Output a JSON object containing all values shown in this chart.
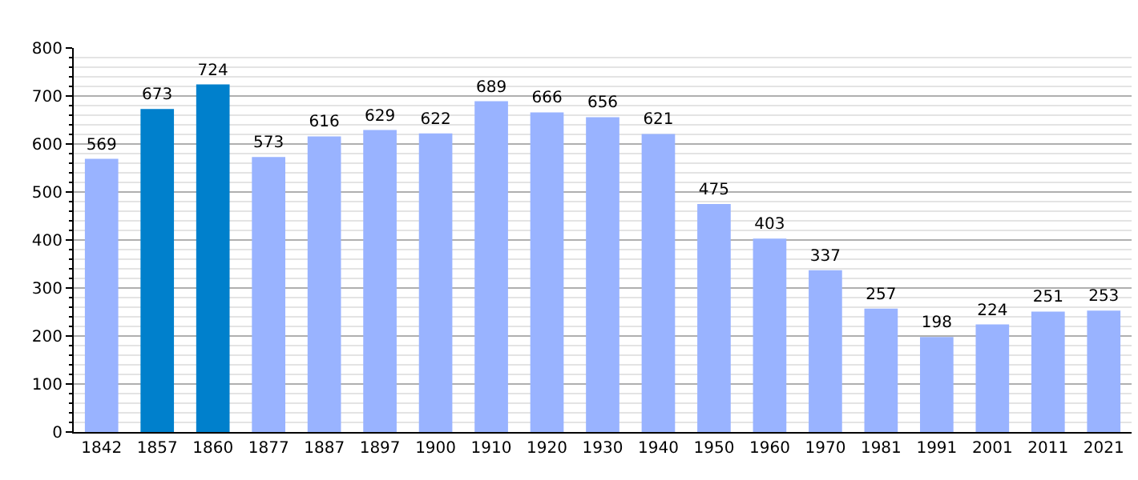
{
  "chart_data": {
    "type": "bar",
    "categories": [
      "1842",
      "1857",
      "1860",
      "1877",
      "1887",
      "1897",
      "1900",
      "1910",
      "1920",
      "1930",
      "1940",
      "1950",
      "1960",
      "1970",
      "1981",
      "1991",
      "2001",
      "2011",
      "2021"
    ],
    "values": [
      569,
      673,
      724,
      573,
      616,
      629,
      622,
      689,
      666,
      656,
      621,
      475,
      403,
      337,
      257,
      198,
      224,
      251,
      253
    ],
    "colors": [
      "#99b3ff",
      "#0080cc",
      "#0080cc",
      "#99b3ff",
      "#99b3ff",
      "#99b3ff",
      "#99b3ff",
      "#99b3ff",
      "#99b3ff",
      "#99b3ff",
      "#99b3ff",
      "#99b3ff",
      "#99b3ff",
      "#99b3ff",
      "#99b3ff",
      "#99b3ff",
      "#99b3ff",
      "#99b3ff",
      "#99b3ff"
    ],
    "ylim": [
      0,
      800
    ],
    "yticks": [
      0,
      100,
      200,
      300,
      400,
      500,
      600,
      700,
      800
    ],
    "grid": "y",
    "data_labels": true
  }
}
